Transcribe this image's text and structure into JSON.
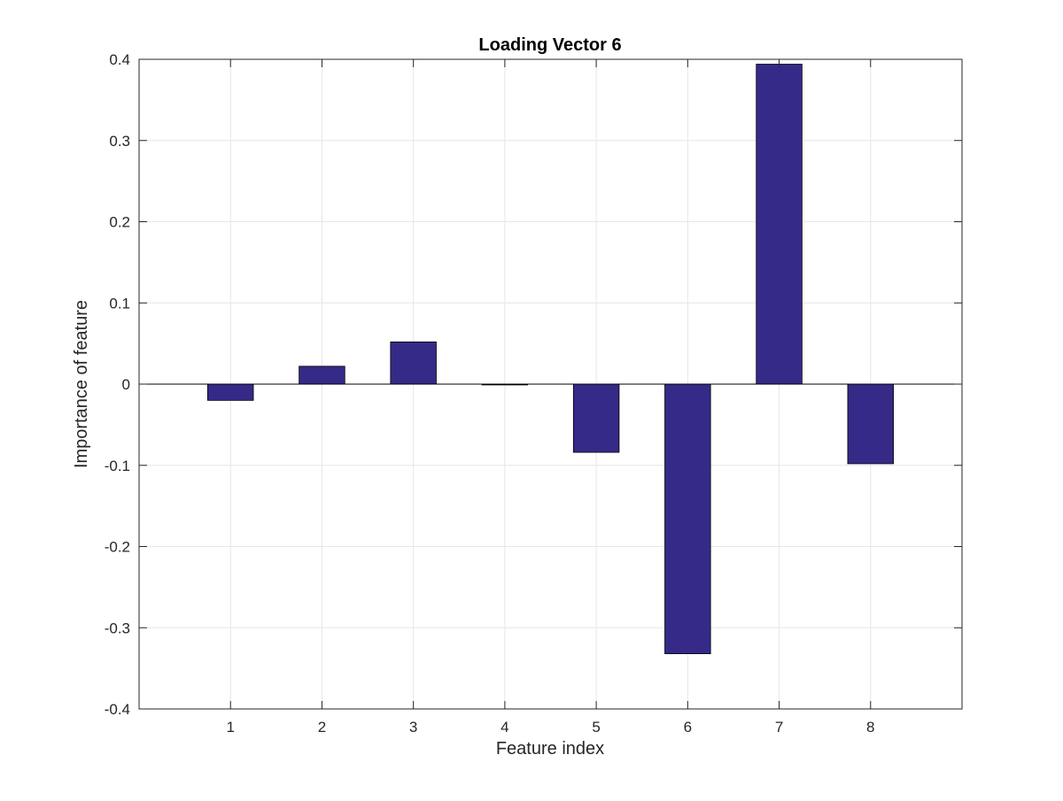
{
  "chart_data": {
    "type": "bar",
    "title": "Loading Vector 6",
    "xlabel": "Feature index",
    "ylabel": "Importance of feature",
    "categories": [
      "1",
      "2",
      "3",
      "4",
      "5",
      "6",
      "7",
      "8"
    ],
    "x": [
      1,
      2,
      3,
      4,
      5,
      6,
      7,
      8
    ],
    "values": [
      -0.02,
      0.022,
      0.052,
      -0.001,
      -0.084,
      -0.332,
      0.394,
      -0.098
    ],
    "xlim": [
      0,
      9
    ],
    "ylim": [
      -0.4,
      0.4
    ],
    "yticks": [
      -0.4,
      -0.3,
      -0.2,
      -0.1,
      0,
      0.1,
      0.2,
      0.3,
      0.4
    ],
    "ytick_labels": [
      "-0.4",
      "-0.3",
      "-0.2",
      "-0.1",
      "0",
      "0.1",
      "0.2",
      "0.3",
      "0.4"
    ],
    "grid": true,
    "colors": {
      "bar_fill": "#352a87",
      "bar_edge": "#000000",
      "grid": "#e6e6e6",
      "axes": "#262626"
    }
  }
}
